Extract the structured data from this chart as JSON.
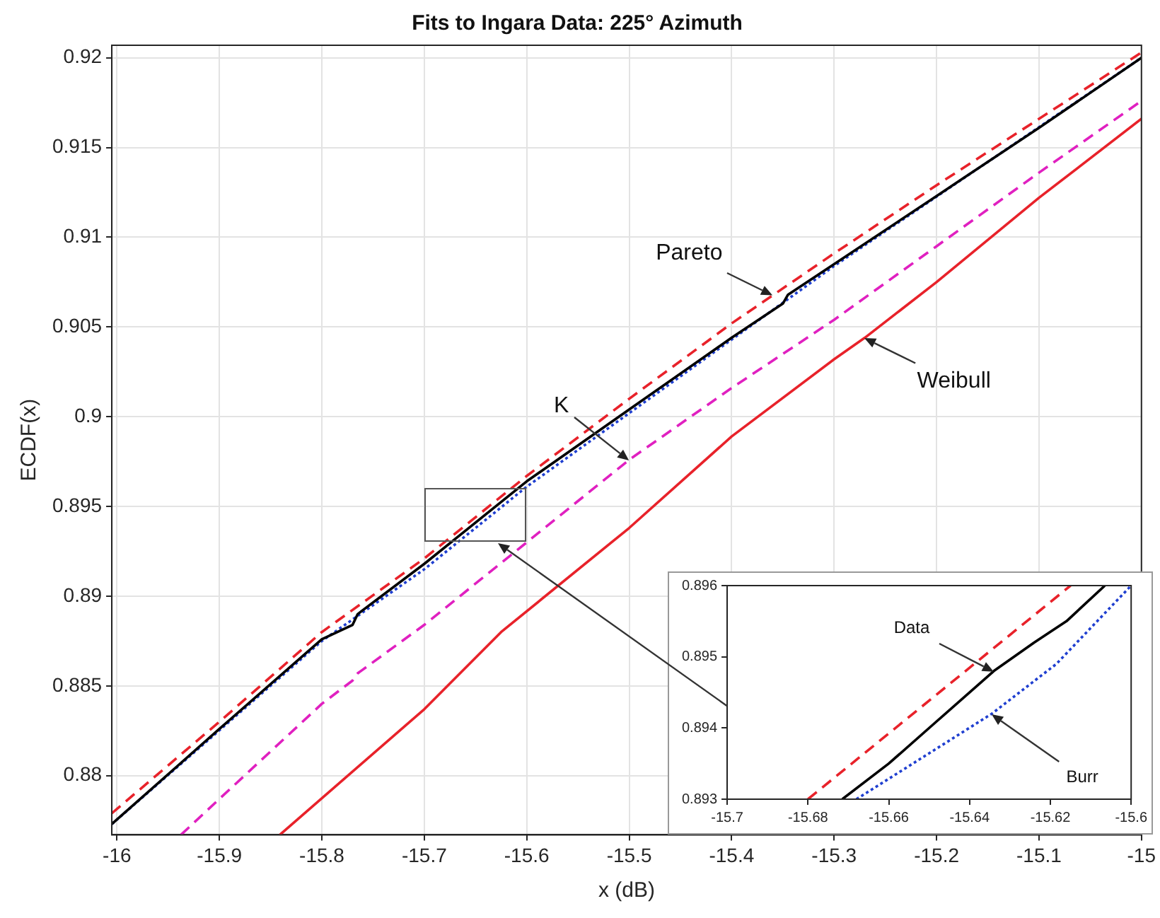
{
  "chart_data": [
    {
      "type": "line",
      "title": "Fits to Ingara Data: 225° Azimuth",
      "xlabel": "x (dB)",
      "ylabel": "ECDF(x)",
      "xlim": [
        -16.005,
        -15.0
      ],
      "ylim": [
        0.8767,
        0.9207
      ],
      "xticks": [
        -16,
        -15.9,
        -15.8,
        -15.7,
        -15.6,
        -15.5,
        -15.4,
        -15.3,
        -15.2,
        -15.1,
        -15
      ],
      "yticks": [
        0.88,
        0.885,
        0.89,
        0.895,
        0.9,
        0.905,
        0.91,
        0.915,
        0.92
      ],
      "grid": true,
      "legend": false,
      "marker": "none",
      "series": [
        {
          "color": "#e8222a",
          "line_style": "dashed",
          "x": [
            -16.005,
            -15.9,
            -15.8,
            -15.7,
            -15.6,
            -15.5,
            -15.4,
            -15.3,
            -15.2,
            -15.1,
            -15.0
          ],
          "values": [
            0.8779,
            0.883,
            0.888,
            0.8921,
            0.8967,
            0.901,
            0.9052,
            0.9091,
            0.9129,
            0.9166,
            0.9203
          ]
        },
        {
          "color": "#e020c0",
          "line_style": "dashed",
          "x": [
            -15.9375,
            -15.9,
            -15.8,
            -15.77,
            -15.765,
            -15.7,
            -15.6,
            -15.5,
            -15.4,
            -15.3,
            -15.2,
            -15.1,
            -15.0
          ],
          "values": [
            0.8767,
            0.8787,
            0.884,
            0.8853,
            0.8857,
            0.8884,
            0.893,
            0.8976,
            0.9016,
            0.9054,
            0.9095,
            0.9136,
            0.9176
          ]
        },
        {
          "color": "#e8222a",
          "line_style": "solid",
          "x": [
            -15.841,
            -15.7,
            -15.625,
            -15.5,
            -15.4,
            -15.3,
            -15.27,
            -15.2,
            -15.1,
            -15.0
          ],
          "values": [
            0.8767,
            0.8837,
            0.888,
            0.8938,
            0.8989,
            0.9032,
            0.9044,
            0.9075,
            0.9122,
            0.9166
          ]
        },
        {
          "color": "#000000",
          "line_style": "solid",
          "x": [
            -16.005,
            -15.9,
            -15.8,
            -15.77,
            -15.765,
            -15.7,
            -15.6,
            -15.5,
            -15.4,
            -15.35,
            -15.345,
            -15.3,
            -15.2,
            -15.1,
            -15.0
          ],
          "values": [
            0.8773,
            0.8826,
            0.8876,
            0.8884,
            0.889,
            0.8918,
            0.8964,
            0.9004,
            0.9044,
            0.9063,
            0.9068,
            0.9085,
            0.9123,
            0.9161,
            0.92
          ]
        },
        {
          "color": "#1f3fd0",
          "line_style": "dotted",
          "x": [
            -16.005,
            -15.8,
            -15.7,
            -15.6,
            -15.5,
            -15.3,
            -15.0
          ],
          "values": [
            0.8773,
            0.8875,
            0.8915,
            0.8961,
            0.9002,
            0.9084,
            0.92
          ]
        }
      ],
      "annotations": [
        {
          "text": "Pareto",
          "x": -15.36,
          "y": 0.9068
        },
        {
          "text": "K",
          "x": -15.5,
          "y": 0.8976
        },
        {
          "text": "Weibull",
          "x": -15.27,
          "y": 0.9044
        }
      ]
    },
    {
      "type": "line",
      "xlim": [
        -15.7,
        -15.6
      ],
      "ylim": [
        0.893,
        0.896
      ],
      "xticks": [
        -15.7,
        -15.68,
        -15.66,
        -15.64,
        -15.62,
        -15.6
      ],
      "yticks": [
        0.893,
        0.894,
        0.895,
        0.896
      ],
      "legend": false,
      "marker": "none",
      "series": [
        {
          "color": "#e8222a",
          "line_style": "dashed",
          "x": [
            -15.68,
            -15.615
          ],
          "values": [
            0.893,
            0.896
          ]
        },
        {
          "color": "#000000",
          "line_style": "solid",
          "x": [
            -15.6715,
            -15.66,
            -15.648,
            -15.634,
            -15.624,
            -15.616,
            -15.6065
          ],
          "values": [
            0.893,
            0.8935,
            0.8941,
            0.8948,
            0.8952,
            0.8955,
            0.896
          ]
        },
        {
          "color": "#1f3fd0",
          "line_style": "dotted",
          "x": [
            -15.668,
            -15.6345,
            -15.6185,
            -15.6
          ],
          "values": [
            0.893,
            0.8942,
            0.8949,
            0.896
          ]
        }
      ],
      "annotations": [
        {
          "text": "Data",
          "x": -15.634,
          "y": 0.8948
        },
        {
          "text": "Burr",
          "x": -15.6345,
          "y": 0.8942
        }
      ]
    }
  ]
}
